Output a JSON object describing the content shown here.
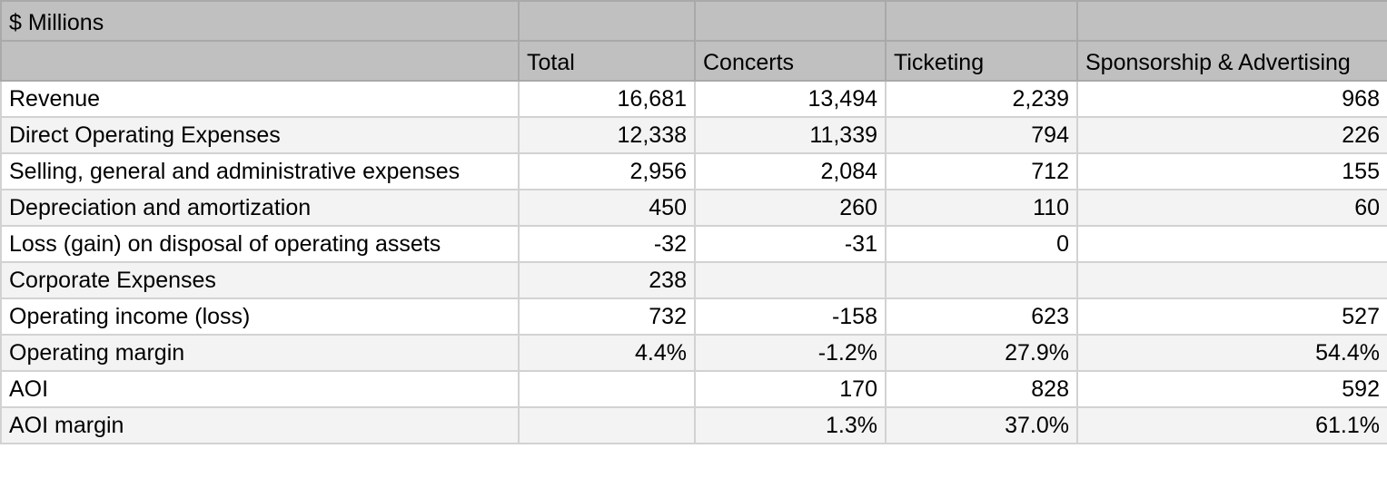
{
  "table": {
    "unit_label": "$ Millions",
    "columns": [
      "Total",
      "Concerts",
      "Ticketing",
      "Sponsorship & Advertising"
    ],
    "rows": [
      {
        "label": "Revenue",
        "values": [
          "16,681",
          "13,494",
          "2,239",
          "968"
        ]
      },
      {
        "label": "Direct Operating Expenses",
        "values": [
          "12,338",
          "11,339",
          "794",
          "226"
        ]
      },
      {
        "label": "Selling, general and administrative expenses",
        "values": [
          "2,956",
          "2,084",
          "712",
          "155"
        ]
      },
      {
        "label": "Depreciation and amortization",
        "values": [
          "450",
          "260",
          "110",
          "60"
        ]
      },
      {
        "label": "Loss (gain) on disposal of operating assets",
        "values": [
          "-32",
          "-31",
          "0",
          ""
        ]
      },
      {
        "label": "Corporate Expenses",
        "values": [
          "238",
          "",
          "",
          ""
        ]
      },
      {
        "label": "Operating income (loss)",
        "values": [
          "732",
          "-158",
          "623",
          "527"
        ]
      },
      {
        "label": "Operating margin",
        "values": [
          "4.4%",
          "-1.2%",
          "27.9%",
          "54.4%"
        ]
      },
      {
        "label": "AOI",
        "values": [
          "",
          "170",
          "828",
          "592"
        ]
      },
      {
        "label": "AOI margin",
        "values": [
          "",
          "1.3%",
          "37.0%",
          "61.1%"
        ]
      }
    ]
  },
  "colors": {
    "header_background": "#c0c0c0",
    "band_background": "#f3f3f3",
    "row_background": "#ffffff",
    "grid_line": "#d2d2d2"
  }
}
